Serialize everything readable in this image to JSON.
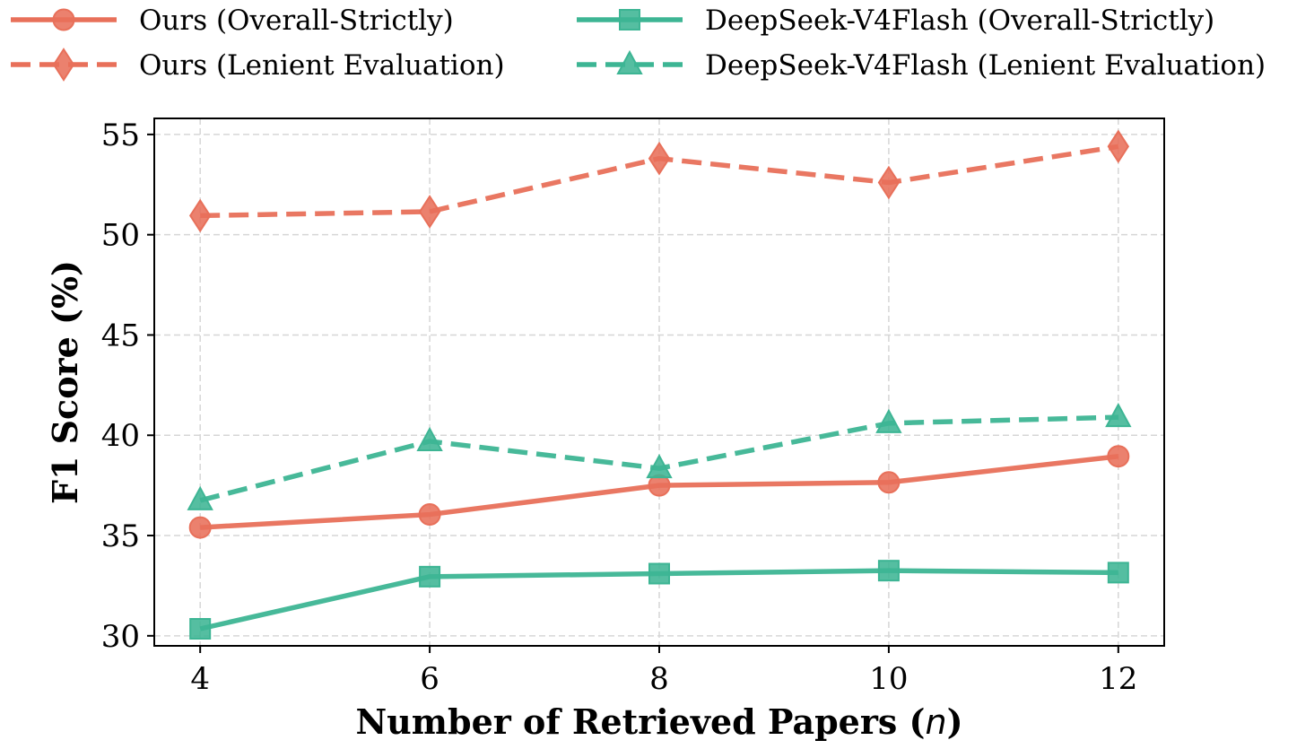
{
  "chart_data": {
    "type": "line",
    "xlabel": "Number of Retrieved Papers (",
    "xlabel_var": "n",
    "xlabel_end": ")",
    "ylabel": "F1 Score (%)",
    "x": [
      4,
      6,
      8,
      10,
      12
    ],
    "xticks": [
      "4",
      "6",
      "8",
      "10",
      "12"
    ],
    "yticks": [
      "30",
      "35",
      "40",
      "45",
      "50",
      "55"
    ],
    "xlim": [
      3.6,
      12.4
    ],
    "ylim": [
      29.5,
      55.8
    ],
    "grid": true,
    "legend_position": "top",
    "series": [
      {
        "name": "Ours (Overall-Strictly)",
        "values": [
          35.4,
          36.05,
          37.5,
          37.65,
          38.95
        ],
        "color": "#e8705a",
        "dash": false,
        "marker": "circle"
      },
      {
        "name": "Ours (Lenient Evaluation)",
        "values": [
          50.95,
          51.15,
          53.8,
          52.6,
          54.4
        ],
        "color": "#e8705a",
        "dash": true,
        "marker": "diamond"
      },
      {
        "name": "DeepSeek-V4Flash (Overall-Strictly)",
        "values": [
          30.35,
          32.95,
          33.1,
          33.25,
          33.15
        ],
        "color": "#3db594",
        "dash": false,
        "marker": "square"
      },
      {
        "name": "DeepSeek-V4Flash (Lenient Evaluation)",
        "values": [
          36.75,
          39.7,
          38.35,
          40.6,
          40.9
        ],
        "color": "#3db594",
        "dash": true,
        "marker": "triangle"
      }
    ]
  }
}
